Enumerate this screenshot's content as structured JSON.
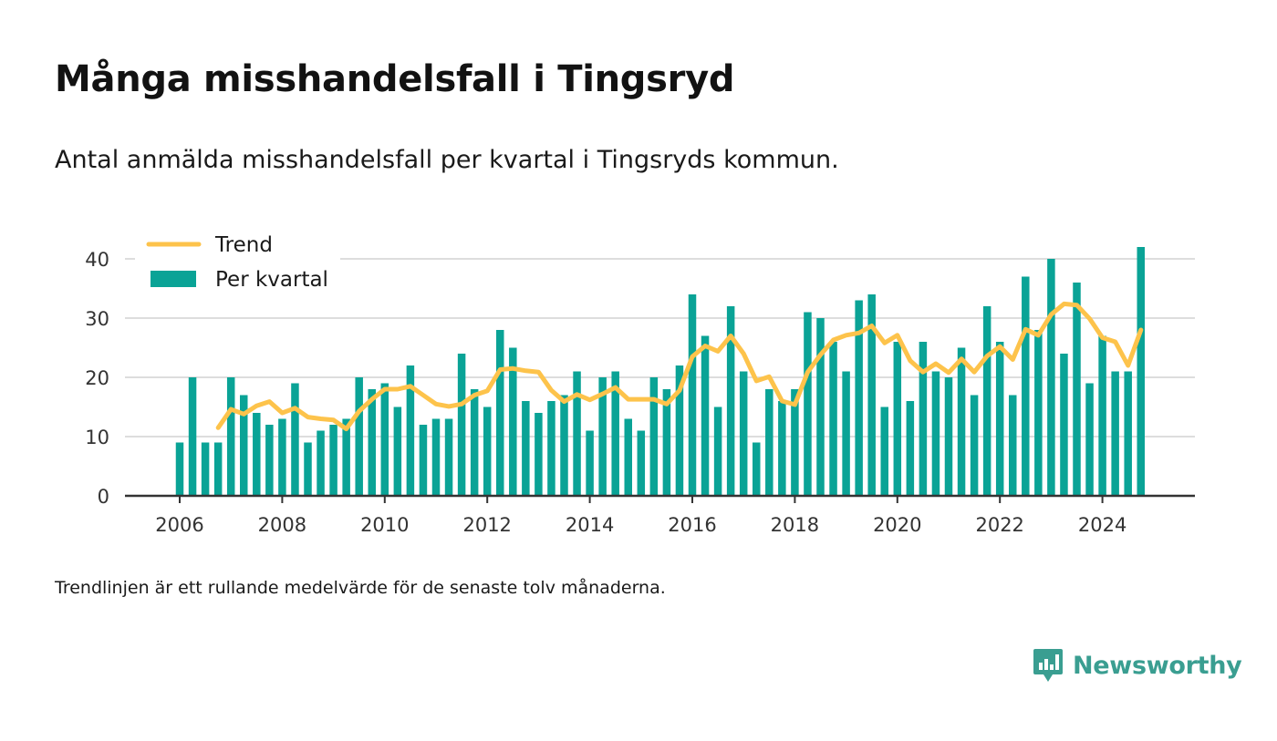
{
  "header": {
    "title": "Många misshandelsfall i Tingsryd",
    "subtitle": "Antal anmälda misshandelsfall per kvartal i Tingsryds kommun."
  },
  "footer": {
    "note": "Trendlinjen är ett rullande medelvärde för de senaste tolv månaderna.",
    "brand": "Newsworthy",
    "brand_icon": "newsworthy-logo-icon"
  },
  "colors": {
    "bars": "#0aa396",
    "trend": "#fdc34b",
    "grid": "#dddddd",
    "axis": "#333333",
    "brand": "#3a9e91"
  },
  "chart_data": {
    "type": "bar",
    "x_unit": "quarter",
    "start": "2006 Q1",
    "legend": [
      "Trend",
      "Per kvartal"
    ],
    "legend_position": "top-left",
    "ylim": [
      0,
      45
    ],
    "yticks": [
      0,
      10,
      20,
      30,
      40
    ],
    "xticks": [
      "2006",
      "2008",
      "2010",
      "2012",
      "2014",
      "2016",
      "2018",
      "2020",
      "2022",
      "2024"
    ],
    "grid": true,
    "series": [
      {
        "name": "Per kvartal",
        "kind": "bar",
        "values": [
          9,
          20,
          9,
          9,
          20,
          17,
          14,
          12,
          13,
          19,
          9,
          11,
          12,
          13,
          20,
          18,
          19,
          15,
          22,
          12,
          13,
          13,
          24,
          18,
          15,
          28,
          25,
          16,
          14,
          16,
          17,
          21,
          11,
          20,
          21,
          13,
          11,
          20,
          18,
          22,
          34,
          27,
          15,
          32,
          21,
          9,
          18,
          16,
          18,
          31,
          30,
          26,
          21,
          33,
          34,
          15,
          26,
          16,
          26,
          21,
          20,
          25,
          17,
          32,
          26,
          17,
          37,
          28,
          40,
          24,
          36,
          19,
          27,
          21,
          21,
          42
        ]
      },
      {
        "name": "Trend",
        "kind": "line",
        "values": [
          null,
          null,
          null,
          11.5,
          14.6,
          13.8,
          15.2,
          15.9,
          14.0,
          14.8,
          13.3,
          13.0,
          12.8,
          11.3,
          14.3,
          16.3,
          18.0,
          18.0,
          18.5,
          17.0,
          15.5,
          15.1,
          15.5,
          17.0,
          17.7,
          21.3,
          21.5,
          21.1,
          20.9,
          17.8,
          15.9,
          17.1,
          16.2,
          17.2,
          18.3,
          16.3,
          16.3,
          16.3,
          15.5,
          17.8,
          23.5,
          25.3,
          24.4,
          27.0,
          24.0,
          19.4,
          20.1,
          16.0,
          15.4,
          20.9,
          23.8,
          26.3,
          27.1,
          27.5,
          28.7,
          25.8,
          27.1,
          22.8,
          20.9,
          22.3,
          20.8,
          23.1,
          20.9,
          23.6,
          25.2,
          23.0,
          28.1,
          27.1,
          30.6,
          32.4,
          32.2,
          29.9,
          26.7,
          26.0,
          22.0,
          28.0
        ]
      }
    ]
  }
}
